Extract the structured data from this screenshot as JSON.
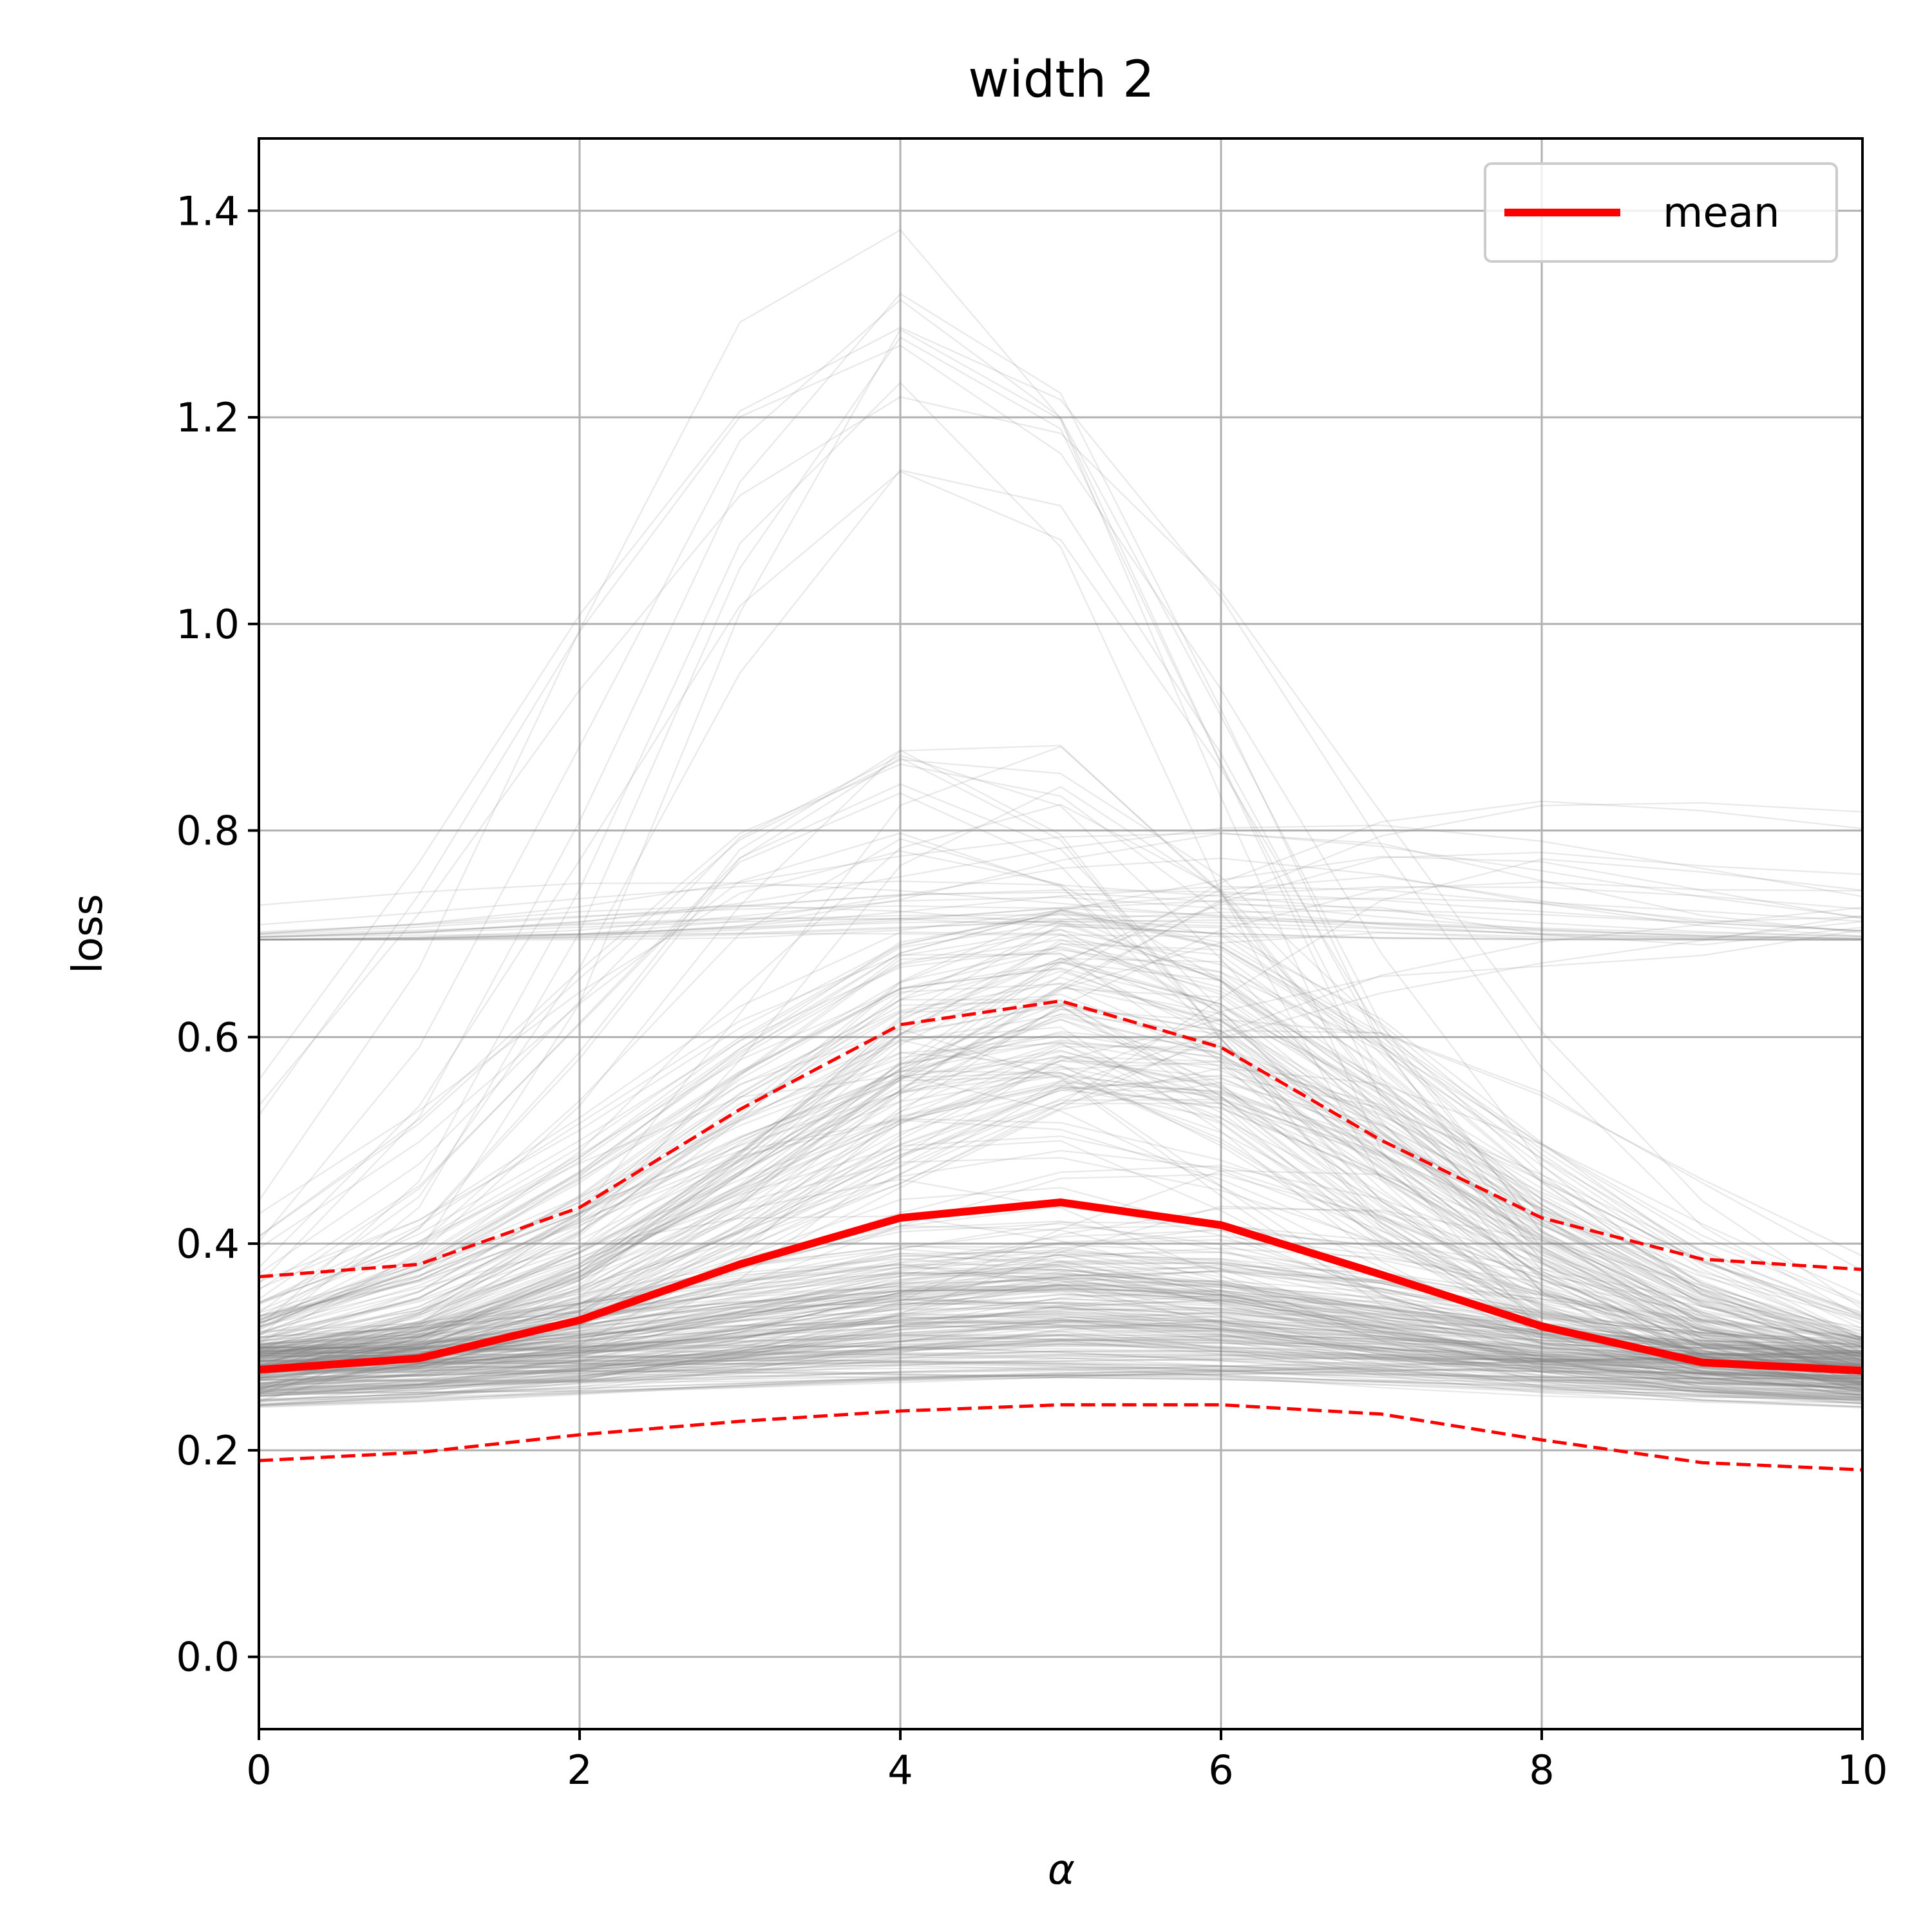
{
  "chart_data": {
    "type": "line",
    "title": "width 2",
    "xlabel": "α",
    "ylabel": "loss",
    "xlim": [
      0,
      10
    ],
    "ylim": [
      -0.07,
      1.47
    ],
    "xticks": [
      0,
      2,
      4,
      6,
      8,
      10
    ],
    "yticks": [
      0.0,
      0.2,
      0.4,
      0.6,
      0.8,
      1.0,
      1.2,
      1.4
    ],
    "ytick_labels": [
      "0.0",
      "0.2",
      "0.4",
      "0.6",
      "0.8",
      "1.0",
      "1.2",
      "1.4"
    ],
    "grid": true,
    "legend": {
      "placement": "top-right",
      "entries": [
        "mean"
      ]
    },
    "x": [
      0,
      1,
      2,
      3,
      4,
      5,
      6,
      7,
      8,
      9,
      10
    ],
    "series": [
      {
        "name": "mean",
        "color": "#ff0000",
        "style": "solid",
        "values": [
          0.278,
          0.289,
          0.326,
          0.38,
          0.425,
          0.44,
          0.418,
          0.37,
          0.32,
          0.285,
          0.277
        ]
      },
      {
        "color": "#ff0000",
        "style": "dashed",
        "values": [
          0.368,
          0.38,
          0.435,
          0.53,
          0.612,
          0.635,
          0.59,
          0.5,
          0.425,
          0.385,
          0.375
        ]
      },
      {
        "color": "#ff0000",
        "style": "dashed",
        "values": [
          0.19,
          0.198,
          0.215,
          0.228,
          0.238,
          0.244,
          0.244,
          0.235,
          0.21,
          0.188,
          0.181
        ]
      }
    ],
    "background_trials": {
      "color": "#808080",
      "count": 360,
      "groups": [
        {
          "share": 0.5,
          "start": [
            0.24,
            0.3
          ],
          "end": [
            0.24,
            0.3
          ],
          "peak_x": [
            4,
            6
          ],
          "peak": [
            0.27,
            0.4
          ]
        },
        {
          "share": 0.22,
          "start": [
            0.25,
            0.3
          ],
          "end": [
            0.24,
            0.29
          ],
          "peak_x": [
            4.5,
            5.5
          ],
          "peak": [
            0.55,
            0.74
          ]
        },
        {
          "share": 0.12,
          "start": [
            0.25,
            0.29
          ],
          "end": [
            0.24,
            0.29
          ],
          "peak_x": [
            3.5,
            6.5
          ],
          "peak": [
            0.4,
            0.62
          ]
        },
        {
          "share": 0.06,
          "start": [
            0.694,
            0.694
          ],
          "end": [
            0.694,
            0.694
          ],
          "peak_x": [
            2.5,
            7.5
          ],
          "peak": [
            0.7,
            0.81
          ]
        },
        {
          "share": 0.04,
          "start": [
            0.27,
            0.29
          ],
          "end": [
            0.24,
            0.28
          ],
          "peak_x": [
            4,
            5
          ],
          "peak": [
            0.78,
            0.91
          ]
        },
        {
          "share": 0.03,
          "start": [
            0.26,
            0.28
          ],
          "end": [
            0.24,
            0.27
          ],
          "peak_x": [
            3.6,
            4.4
          ],
          "peak": [
            1.14,
            1.4
          ]
        },
        {
          "share": 0.03,
          "start": [
            0.24,
            0.28
          ],
          "end": [
            0.694,
            0.694
          ],
          "peak_x": [
            5.5,
            7.5
          ],
          "peak": [
            0.62,
            0.81
          ]
        }
      ]
    }
  }
}
